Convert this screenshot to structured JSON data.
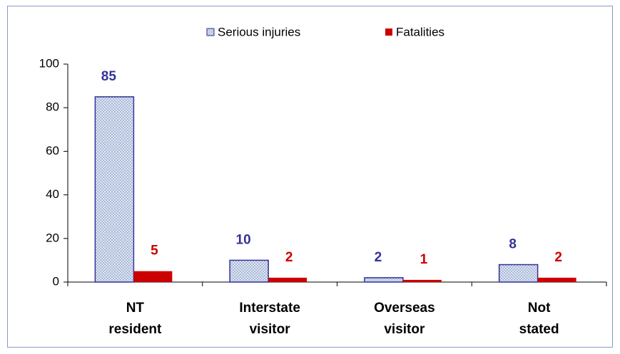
{
  "chart_data": {
    "type": "bar",
    "categories": [
      [
        "NT",
        "resident"
      ],
      [
        "Interstate",
        "visitor"
      ],
      [
        "Overseas",
        "visitor"
      ],
      [
        "Not",
        "stated"
      ]
    ],
    "series": [
      {
        "name": "Serious injuries",
        "color": "#333399",
        "values": [
          85,
          10,
          2,
          8
        ]
      },
      {
        "name": "Fatalities",
        "color": "#cc0000",
        "values": [
          5,
          2,
          1,
          2
        ]
      }
    ],
    "ylim": [
      0,
      100
    ],
    "yticks": [
      0,
      20,
      40,
      60,
      80,
      100
    ],
    "grid": false,
    "legend": "top"
  }
}
